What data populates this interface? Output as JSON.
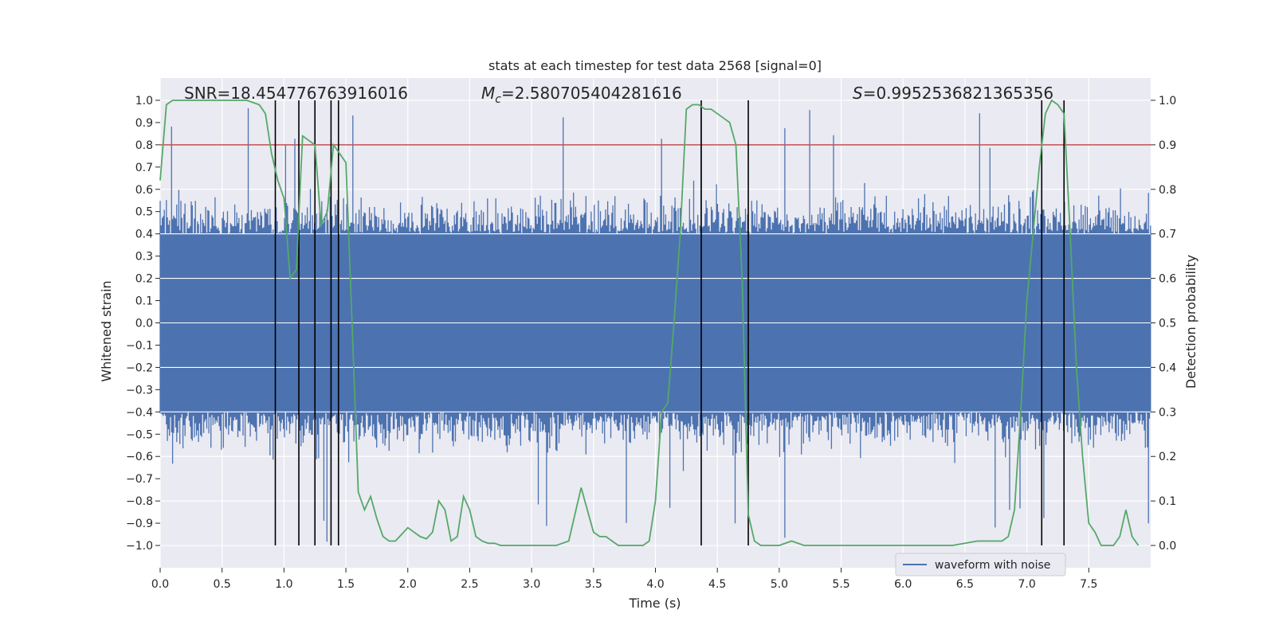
{
  "chart_data": {
    "type": "line",
    "title": "stats at each timestep for test data 2568 [signal=0]",
    "xlabel": "Time (s)",
    "ylabel_left": "Whitened strain",
    "ylabel_right": "Detection probability",
    "xlim": [
      0.0,
      8.0
    ],
    "ylim_left": [
      -1.1,
      1.1
    ],
    "ylim_right": [
      -0.05,
      1.05
    ],
    "x_ticks": [
      0.0,
      0.5,
      1.0,
      1.5,
      2.0,
      2.5,
      3.0,
      3.5,
      4.0,
      4.5,
      5.0,
      5.5,
      6.0,
      6.5,
      7.0,
      7.5
    ],
    "x_tick_labels": [
      "0.0",
      "0.5",
      "1.0",
      "1.5",
      "2.0",
      "2.5",
      "3.0",
      "3.5",
      "4.0",
      "4.5",
      "5.0",
      "5.5",
      "6.0",
      "6.5",
      "7.0",
      "7.5"
    ],
    "y_left_ticks": [
      1.0,
      0.9,
      0.8,
      0.7,
      0.6,
      0.5,
      0.4,
      0.3,
      0.2,
      0.1,
      0.0,
      -0.1,
      -0.2,
      -0.3,
      -0.4,
      -0.5,
      -0.6,
      -0.7,
      -0.8,
      -0.9,
      -1.0
    ],
    "y_left_tick_labels": [
      "1.0",
      "0.9",
      "0.8",
      "0.7",
      "0.6",
      "0.5",
      "0.4",
      "0.3",
      "0.2",
      "0.1",
      "0.0",
      "−0.1",
      "−0.2",
      "−0.3",
      "−0.4",
      "−0.5",
      "−0.6",
      "−0.7",
      "−0.8",
      "−0.9",
      "−1.0"
    ],
    "y_right_ticks": [
      1.0,
      0.9,
      0.8,
      0.7,
      0.6,
      0.5,
      0.4,
      0.3,
      0.2,
      0.1,
      0.0
    ],
    "y_right_tick_labels": [
      "1.0",
      "0.9",
      "0.8",
      "0.7",
      "0.6",
      "0.5",
      "0.4",
      "0.3",
      "0.2",
      "0.1",
      "0.0"
    ],
    "stats": {
      "snr": "SNR=18.454776763916016",
      "mc_prefix": "M",
      "mc_sub": "c",
      "mc_value": "=2.580705404281616",
      "s_prefix": "S",
      "s_value": "=0.9952536821365356"
    },
    "threshold": {
      "value": 0.9,
      "axis": "right",
      "color": "#c44e52"
    },
    "detection_markers_x": [
      0.93,
      1.12,
      1.25,
      1.38,
      1.44,
      4.37,
      4.75,
      7.12,
      7.3
    ],
    "series": [
      {
        "name": "waveform with noise",
        "axis": "left",
        "color": "#4c72b0",
        "kind": "noise",
        "envelope": 0.4,
        "peak_amplitude": 1.0
      },
      {
        "name": "detection probability",
        "axis": "right",
        "color": "#55a868",
        "x": [
          0.0,
          0.05,
          0.1,
          0.2,
          0.3,
          0.4,
          0.5,
          0.6,
          0.7,
          0.8,
          0.85,
          0.9,
          0.95,
          1.0,
          1.05,
          1.1,
          1.15,
          1.2,
          1.25,
          1.3,
          1.35,
          1.4,
          1.45,
          1.5,
          1.55,
          1.6,
          1.65,
          1.7,
          1.75,
          1.8,
          1.85,
          1.9,
          1.95,
          2.0,
          2.05,
          2.1,
          2.15,
          2.2,
          2.25,
          2.3,
          2.35,
          2.4,
          2.45,
          2.5,
          2.55,
          2.6,
          2.65,
          2.7,
          2.75,
          2.8,
          2.9,
          3.0,
          3.1,
          3.2,
          3.3,
          3.4,
          3.45,
          3.5,
          3.55,
          3.6,
          3.65,
          3.7,
          3.75,
          3.8,
          3.85,
          3.9,
          3.95,
          4.0,
          4.05,
          4.1,
          4.15,
          4.2,
          4.25,
          4.3,
          4.35,
          4.4,
          4.45,
          4.5,
          4.55,
          4.6,
          4.65,
          4.7,
          4.75,
          4.8,
          4.85,
          4.9,
          5.0,
          5.1,
          5.2,
          5.3,
          5.4,
          5.5,
          5.6,
          5.8,
          6.0,
          6.2,
          6.4,
          6.6,
          6.7,
          6.8,
          6.85,
          6.9,
          6.95,
          7.0,
          7.05,
          7.1,
          7.15,
          7.2,
          7.25,
          7.3,
          7.35,
          7.4,
          7.45,
          7.5,
          7.55,
          7.6,
          7.65,
          7.7,
          7.75,
          7.8,
          7.85,
          7.9
        ],
        "values": [
          0.82,
          0.99,
          1.0,
          1.0,
          1.0,
          1.0,
          1.0,
          1.0,
          1.0,
          0.99,
          0.97,
          0.88,
          0.82,
          0.78,
          0.6,
          0.62,
          0.92,
          0.91,
          0.9,
          0.72,
          0.75,
          0.9,
          0.88,
          0.86,
          0.5,
          0.12,
          0.08,
          0.11,
          0.06,
          0.02,
          0.01,
          0.01,
          0.025,
          0.04,
          0.03,
          0.02,
          0.015,
          0.03,
          0.1,
          0.08,
          0.01,
          0.02,
          0.11,
          0.08,
          0.02,
          0.01,
          0.005,
          0.005,
          0.0,
          0.0,
          0.0,
          0.0,
          0.0,
          0.0,
          0.01,
          0.13,
          0.08,
          0.03,
          0.02,
          0.02,
          0.01,
          0.0,
          0.0,
          0.0,
          0.0,
          0.0,
          0.01,
          0.1,
          0.3,
          0.32,
          0.5,
          0.7,
          0.98,
          0.99,
          0.99,
          0.98,
          0.98,
          0.97,
          0.96,
          0.95,
          0.9,
          0.6,
          0.07,
          0.01,
          0.0,
          0.0,
          0.0,
          0.01,
          0.0,
          0.0,
          0.0,
          0.0,
          0.0,
          0.0,
          0.0,
          0.0,
          0.0,
          0.01,
          0.01,
          0.01,
          0.02,
          0.08,
          0.3,
          0.55,
          0.7,
          0.85,
          0.97,
          1.0,
          0.99,
          0.97,
          0.7,
          0.4,
          0.2,
          0.05,
          0.03,
          0.0,
          0.0,
          0.0,
          0.02,
          0.08,
          0.02,
          0.0
        ]
      }
    ],
    "legend": {
      "entries": [
        "waveform with noise"
      ],
      "placement": "lower-right"
    }
  }
}
